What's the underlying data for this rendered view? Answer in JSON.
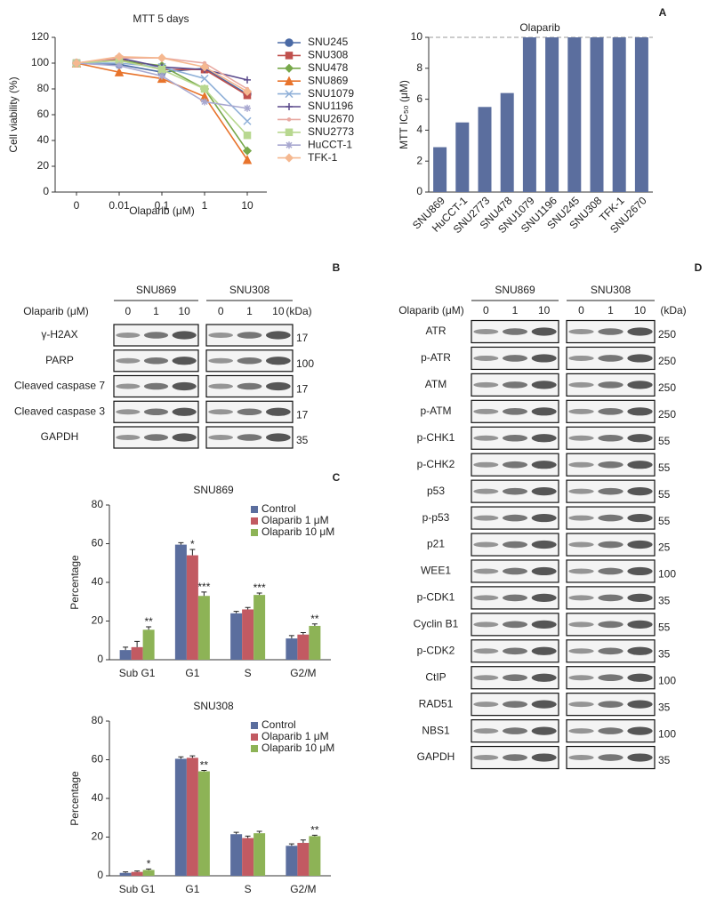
{
  "panel_labels": [
    "A",
    "B",
    "C",
    "D"
  ],
  "chart_data": [
    {
      "type": "line",
      "title": "MTT 5 days",
      "x_label": "Olaparib (μM)",
      "y_label": "Cell viability (%)",
      "categories": [
        "0",
        "0.01",
        "0.1",
        "1",
        "10"
      ],
      "ylim": [
        0,
        120
      ],
      "yticks": [
        0,
        20,
        40,
        60,
        80,
        100,
        120
      ],
      "series": [
        {
          "name": "SNU245",
          "color": "#4a6aa5",
          "marker": "circle",
          "values": [
            100,
            99,
            93,
            96,
            76
          ]
        },
        {
          "name": "SNU308",
          "color": "#c0504d",
          "marker": "square",
          "values": [
            100,
            103,
            95,
            95,
            75
          ]
        },
        {
          "name": "SNU478",
          "color": "#77a84a",
          "marker": "diamond",
          "values": [
            100,
            102,
            98,
            80,
            32
          ]
        },
        {
          "name": "SNU869",
          "color": "#e8742c",
          "marker": "triangle",
          "values": [
            100,
            93,
            88,
            74,
            25
          ]
        },
        {
          "name": "SNU1079",
          "color": "#8fb0d8",
          "marker": "x",
          "values": [
            100,
            100,
            97,
            88,
            55
          ]
        },
        {
          "name": "SNU1196",
          "color": "#5b4a8c",
          "marker": "plus",
          "values": [
            100,
            104,
            97,
            95,
            87
          ]
        },
        {
          "name": "SNU2670",
          "color": "#e8a8a0",
          "marker": "none",
          "values": [
            100,
            104,
            104,
            100,
            80
          ]
        },
        {
          "name": "SNU2773",
          "color": "#b8d890",
          "marker": "square",
          "values": [
            100,
            102,
            95,
            80,
            44
          ]
        },
        {
          "name": "HuCCT-1",
          "color": "#a8a8d0",
          "marker": "star",
          "values": [
            100,
            98,
            90,
            70,
            65
          ]
        },
        {
          "name": "TFK-1",
          "color": "#f5b890",
          "marker": "diamond",
          "values": [
            100,
            105,
            104,
            97,
            78
          ]
        }
      ]
    },
    {
      "type": "bar",
      "title": "Olaparib",
      "y_label": "MTT IC₅₀ (μM)",
      "color": "#5b6e9e",
      "categories": [
        "SNU869",
        "HuCCT-1",
        "SNU2773",
        "SNU478",
        "SNU1079",
        "SNU1196",
        "SNU245",
        "SNU308",
        "TFK-1",
        "SNU2670"
      ],
      "values": [
        2.9,
        4.5,
        5.5,
        6.4,
        10,
        10,
        10,
        10,
        10,
        10
      ],
      "ylim": [
        0,
        10
      ],
      "yticks": [
        0,
        2,
        4,
        6,
        8,
        10
      ],
      "hline": 10
    },
    {
      "type": "grouped-bar",
      "title": "SNU869",
      "y_label": "Percentage",
      "categories": [
        "Sub G1",
        "G1",
        "S",
        "G2/M"
      ],
      "ylim": [
        0,
        80
      ],
      "yticks": [
        0,
        20,
        40,
        60,
        80
      ],
      "series": [
        {
          "name": "Control",
          "color": "#5b6e9e",
          "values": [
            5,
            59.5,
            24,
            11
          ],
          "errors": [
            1.5,
            1,
            1,
            1.5
          ]
        },
        {
          "name": "Olaparib 1 μM",
          "color": "#c25a62",
          "values": [
            6.5,
            54,
            26,
            13
          ],
          "errors": [
            3,
            3,
            1,
            1
          ],
          "annotations": [
            null,
            "*",
            null,
            null
          ]
        },
        {
          "name": "Olaparib 10 μM",
          "color": "#8db356",
          "values": [
            15.5,
            33,
            33.5,
            17.5
          ],
          "errors": [
            1.5,
            2,
            1,
            1
          ],
          "annotations": [
            "**",
            "***",
            "***",
            "**"
          ]
        }
      ]
    },
    {
      "type": "grouped-bar",
      "title": "SNU308",
      "y_label": "Percentage",
      "categories": [
        "Sub G1",
        "G1",
        "S",
        "G2/M"
      ],
      "ylim": [
        0,
        80
      ],
      "yticks": [
        0,
        20,
        40,
        60,
        80
      ],
      "series": [
        {
          "name": "Control",
          "color": "#5b6e9e",
          "values": [
            1.5,
            60.5,
            21.5,
            15.5
          ],
          "errors": [
            0.5,
            1,
            1,
            1
          ]
        },
        {
          "name": "Olaparib 1 μM",
          "color": "#c25a62",
          "values": [
            2,
            61,
            19.5,
            17
          ],
          "errors": [
            0.5,
            1,
            1,
            1.5
          ]
        },
        {
          "name": "Olaparib 10 μM",
          "color": "#8db356",
          "values": [
            3,
            54,
            22,
            20.5
          ],
          "errors": [
            0.5,
            0.5,
            1,
            0.5
          ],
          "annotations": [
            "*",
            "**",
            null,
            "**"
          ]
        }
      ]
    }
  ],
  "blots": [
    {
      "cell_lines": [
        "SNU869",
        "SNU308"
      ],
      "treatment": "Olaparib (μM)",
      "doses": [
        "0",
        "1",
        "10"
      ],
      "unit": "(kDa)",
      "rows": [
        {
          "label": "γ-H2AX",
          "kda": 17
        },
        {
          "label": "PARP",
          "kda": 100
        },
        {
          "label": "Cleaved caspase 7",
          "kda": 17
        },
        {
          "label": "Cleaved caspase 3",
          "kda": 17
        },
        {
          "label": "GAPDH",
          "kda": 35
        }
      ]
    },
    {
      "cell_lines": [
        "SNU869",
        "SNU308"
      ],
      "treatment": "Olaparib (μM)",
      "doses": [
        "0",
        "1",
        "10"
      ],
      "unit": "(kDa)",
      "rows": [
        {
          "label": "ATR",
          "kda": 250
        },
        {
          "label": "p-ATR",
          "kda": 250
        },
        {
          "label": "ATM",
          "kda": 250
        },
        {
          "label": "p-ATM",
          "kda": 250
        },
        {
          "label": "p-CHK1",
          "kda": 55
        },
        {
          "label": "p-CHK2",
          "kda": 55
        },
        {
          "label": "p53",
          "kda": 55
        },
        {
          "label": "p-p53",
          "kda": 55
        },
        {
          "label": "p21",
          "kda": 25
        },
        {
          "label": "WEE1",
          "kda": 100
        },
        {
          "label": "p-CDK1",
          "kda": 35
        },
        {
          "label": "Cyclin B1",
          "kda": 55
        },
        {
          "label": "p-CDK2",
          "kda": 35
        },
        {
          "label": "CtIP",
          "kda": 100
        },
        {
          "label": "RAD51",
          "kda": 35
        },
        {
          "label": "NBS1",
          "kda": 100
        },
        {
          "label": "GAPDH",
          "kda": 35
        }
      ]
    }
  ]
}
